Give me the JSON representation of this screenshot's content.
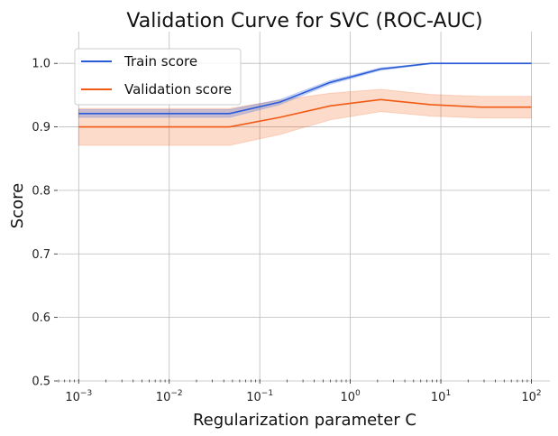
{
  "chart_data": {
    "type": "line",
    "title": "Validation Curve for SVC (ROC-AUC)",
    "xlabel": "Regularization parameter C",
    "ylabel": "Score",
    "xscale": "log",
    "xlim": [
      0.0006,
      160
    ],
    "ylim": [
      0.5,
      1.05
    ],
    "grid": true,
    "legend_position": "top-left",
    "x_ticks": [
      0.001,
      0.01,
      0.1,
      1,
      10,
      100
    ],
    "x_tick_labels": [
      {
        "base": "10",
        "exp": "−3"
      },
      {
        "base": "10",
        "exp": "−2"
      },
      {
        "base": "10",
        "exp": "−1"
      },
      {
        "base": "10",
        "exp": "0"
      },
      {
        "base": "10",
        "exp": "1"
      },
      {
        "base": "10",
        "exp": "2"
      }
    ],
    "y_ticks": [
      0.5,
      0.6,
      0.7,
      0.8,
      0.9,
      1.0
    ],
    "y_tick_labels": [
      "0.5",
      "0.6",
      "0.7",
      "0.8",
      "0.9",
      "1.0"
    ],
    "x": [
      0.001,
      0.00359,
      0.0129,
      0.0464,
      0.1668,
      0.5995,
      2.154,
      7.743,
      27.83,
      100
    ],
    "series": [
      {
        "name": "Train score",
        "color": "#2a5bd7",
        "values": [
          0.921,
          0.921,
          0.921,
          0.921,
          0.939,
          0.97,
          0.991,
          1.0,
          1.0,
          1.0
        ],
        "lower": [
          0.915,
          0.915,
          0.915,
          0.915,
          0.935,
          0.967,
          0.989,
          0.999,
          0.999,
          0.999
        ],
        "upper": [
          0.927,
          0.927,
          0.927,
          0.927,
          0.943,
          0.973,
          0.993,
          1.0,
          1.0,
          1.0
        ]
      },
      {
        "name": "Validation score",
        "color": "#f05a14",
        "values": [
          0.9,
          0.9,
          0.9,
          0.9,
          0.915,
          0.933,
          0.943,
          0.935,
          0.931,
          0.931
        ],
        "lower": [
          0.871,
          0.871,
          0.871,
          0.871,
          0.888,
          0.911,
          0.924,
          0.917,
          0.914,
          0.914
        ],
        "upper": [
          0.929,
          0.929,
          0.929,
          0.929,
          0.942,
          0.953,
          0.959,
          0.951,
          0.948,
          0.948
        ]
      }
    ]
  }
}
